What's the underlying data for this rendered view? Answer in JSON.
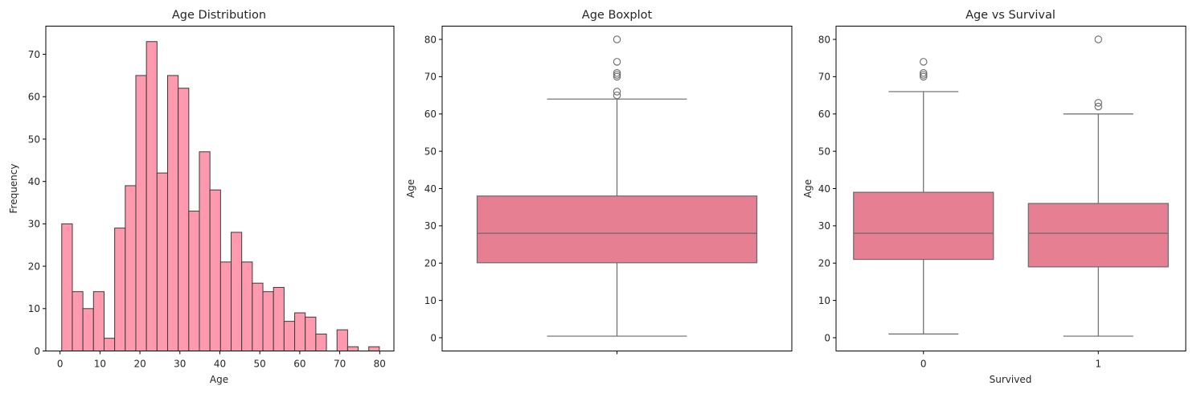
{
  "colors": {
    "hist_fill": "#ff9aae",
    "hist_edge": "#3a3a3a",
    "box_fill": "#e77f92",
    "box_line": "#6a6a6a",
    "outlier_edge": "#6a6a6a"
  },
  "chart_data": [
    {
      "type": "bar",
      "subtype": "histogram",
      "title": "Age Distribution",
      "xlabel": "Age",
      "ylabel": "Frequency",
      "bin_start": 0.42,
      "bin_width": 2.65,
      "values": [
        30,
        14,
        10,
        14,
        3,
        29,
        39,
        65,
        73,
        42,
        65,
        62,
        33,
        47,
        38,
        21,
        28,
        21,
        16,
        14,
        15,
        7,
        9,
        8,
        4,
        0,
        5,
        1,
        0,
        1
      ],
      "xlim": [
        -3.56,
        83.56
      ],
      "ylim": [
        0,
        76.65
      ],
      "xticks": [
        0,
        10,
        20,
        30,
        40,
        50,
        60,
        70,
        80
      ],
      "yticks": [
        0,
        10,
        20,
        30,
        40,
        50,
        60,
        70
      ],
      "grid": false
    },
    {
      "type": "box",
      "title": "Age Boxplot",
      "xlabel": "",
      "ylabel": "Age",
      "categories": [
        ""
      ],
      "boxes": [
        {
          "whisker_low": 0.42,
          "q1": 20.1,
          "median": 28,
          "q3": 38,
          "whisker_high": 64,
          "outliers": [
            65,
            66,
            70,
            70.5,
            71,
            74,
            80
          ]
        }
      ],
      "ylim": [
        -3.56,
        83.56
      ],
      "yticks": [
        0,
        10,
        20,
        30,
        40,
        50,
        60,
        70,
        80
      ],
      "grid": false
    },
    {
      "type": "box",
      "title": "Age vs Survival",
      "xlabel": "Survived",
      "ylabel": "Age",
      "categories": [
        "0",
        "1"
      ],
      "boxes": [
        {
          "whisker_low": 1,
          "q1": 21,
          "median": 28,
          "q3": 39,
          "whisker_high": 66,
          "outliers": [
            70,
            70.5,
            71,
            74
          ]
        },
        {
          "whisker_low": 0.42,
          "q1": 19,
          "median": 28,
          "q3": 36,
          "whisker_high": 60,
          "outliers": [
            62,
            63,
            80
          ]
        }
      ],
      "ylim": [
        -3.56,
        83.56
      ],
      "yticks": [
        0,
        10,
        20,
        30,
        40,
        50,
        60,
        70,
        80
      ],
      "grid": false
    }
  ]
}
